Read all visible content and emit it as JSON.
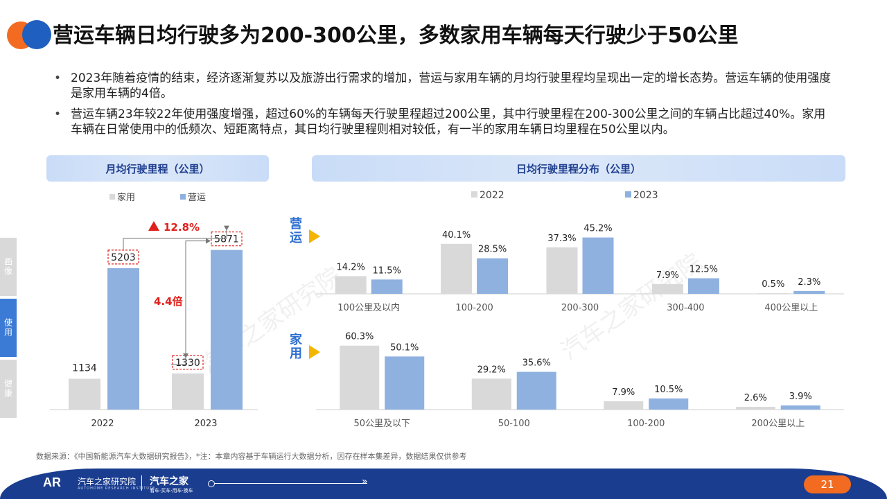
{
  "page": {
    "title": "营运车辆日均行驶多为200-300公里，多数家用车辆每天行驶少于50公里",
    "bullets": [
      "2023年随着疫情的结束，经济逐渐复苏以及旅游出行需求的增加，营运与家用车辆的月均行驶里程均呈现出一定的增长态势。营运车辆的使用强度是家用车辆的4倍。",
      "营运车辆23年较22年使用强度增强，超过60%的车辆每天行驶里程超过200公里，其中行驶里程在200-300公里之间的车辆占比超过40%。家用车辆在日常使用中的低频次、短距离特点，其日均行驶里程则相对较低，有一半的家用车辆日均里程在50公里以内。"
    ],
    "side_tabs": [
      "画像",
      "使用",
      "健康"
    ],
    "source": "数据来源：《中国新能源汽车大数据研究报告》，*注：本章内容基于车辆运行大数据分析，因存在样本集差异，数据结果仅供参考",
    "watermark": "汽车之家研究院",
    "footer": {
      "logo": "AR",
      "org": "汽车之家研究院",
      "org_en": "AUTOHOME RESEARCH INSTITUTE",
      "brand": "汽车之家",
      "slogan": "看车·买车·用车·换车",
      "page_number": "21"
    }
  },
  "colors": {
    "home": "#d9d9d9",
    "operating": "#8fb1e0",
    "accent_red": "#e0201b",
    "arrow_yellow": "#f5b400",
    "group_label_blue": "#2e6fd1",
    "footer_blue": "#1a3d8f",
    "orange": "#f26b21"
  },
  "chart_data": [
    {
      "type": "bar",
      "title": "月均行驶里程（公里）",
      "categories": [
        "2022",
        "2023"
      ],
      "series": [
        {
          "name": "家用",
          "values": [
            1134,
            1330
          ]
        },
        {
          "name": "营运",
          "values": [
            5203,
            5871
          ]
        }
      ],
      "ylim": [
        0,
        6500
      ],
      "legend": "top-center",
      "annotations": {
        "growth": "12.8%",
        "multiple": "4.4倍"
      }
    },
    {
      "type": "bar",
      "title": "日均行驶里程分布（公里）",
      "legend": "top-center",
      "legend_names": [
        "2022",
        "2023"
      ],
      "groups": [
        {
          "label": "营运",
          "categories": [
            "100公里及以内",
            "100-200",
            "200-300",
            "300-400",
            "400公里以上"
          ],
          "series": [
            {
              "name": "2022",
              "values": [
                14.2,
                40.1,
                37.3,
                7.9,
                0.5
              ]
            },
            {
              "name": "2023",
              "values": [
                11.5,
                28.5,
                45.2,
                12.5,
                2.3
              ]
            }
          ]
        },
        {
          "label": "家用",
          "categories": [
            "50公里及以下",
            "50-100",
            "100-200",
            "200公里以上"
          ],
          "series": [
            {
              "name": "2022",
              "values": [
                60.3,
                29.2,
                7.9,
                2.6
              ]
            },
            {
              "name": "2023",
              "values": [
                50.1,
                35.6,
                10.5,
                3.9
              ]
            }
          ]
        }
      ],
      "unit": "%"
    }
  ]
}
